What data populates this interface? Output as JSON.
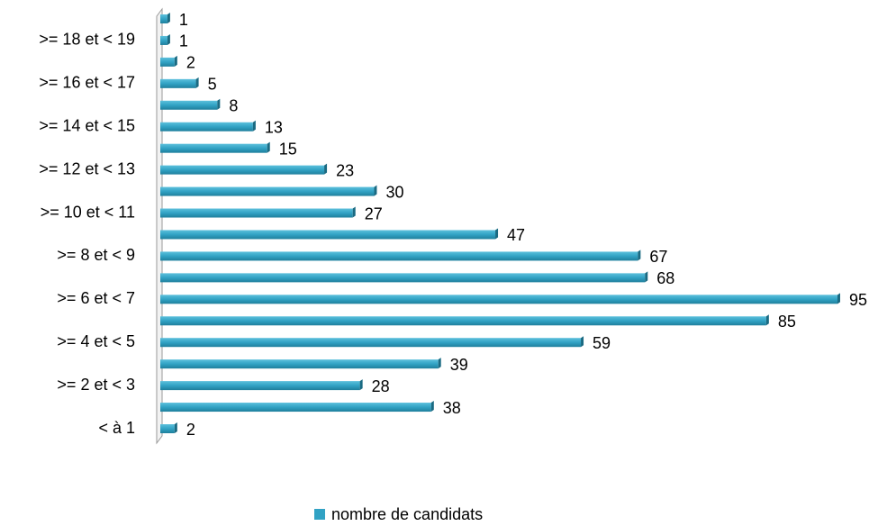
{
  "chart_data": {
    "type": "barh",
    "categories": [
      "< à 1",
      null,
      ">= 2 et < 3",
      null,
      ">= 4 et < 5",
      null,
      ">= 6 et < 7",
      null,
      ">= 8 et < 9",
      null,
      ">= 10 et < 11",
      null,
      ">= 12 et < 13",
      null,
      ">= 14 et < 15",
      null,
      ">= 16 et < 17",
      null,
      ">= 18 et < 19",
      null
    ],
    "series": [
      {
        "name": "nombre de candidats",
        "color": "#31a2c4",
        "values": [
          2,
          38,
          28,
          39,
          59,
          85,
          95,
          68,
          67,
          47,
          27,
          30,
          23,
          15,
          13,
          8,
          5,
          2,
          1,
          1
        ]
      }
    ],
    "legend": "bottom"
  }
}
